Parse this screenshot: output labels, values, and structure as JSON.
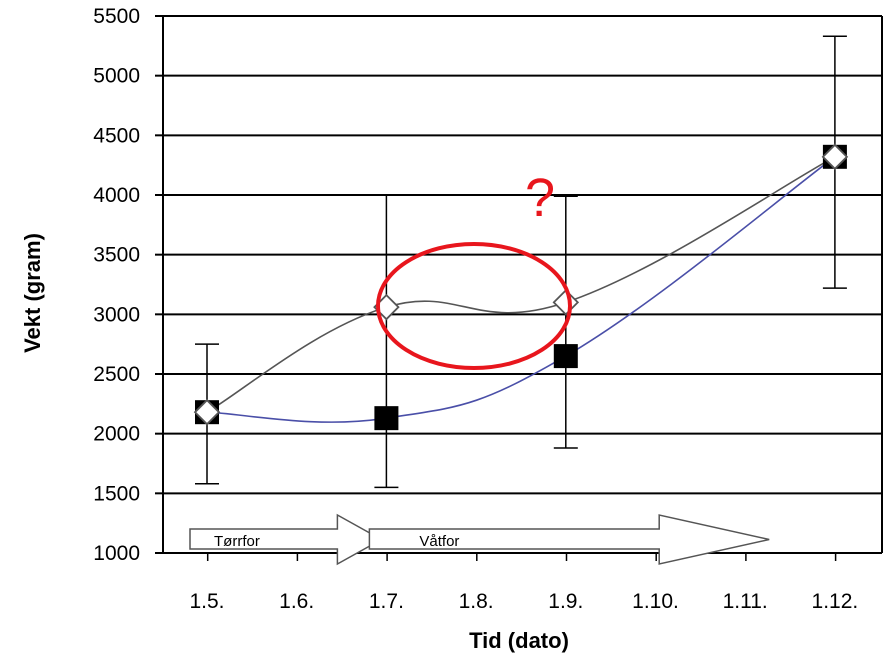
{
  "chart_data": {
    "type": "line",
    "title": "",
    "xlabel": "Tid (dato)",
    "ylabel": "Vekt (gram)",
    "categories": [
      "1.5.",
      "1.6.",
      "1.7.",
      "1.8.",
      "1.9.",
      "1.10.",
      "1.11.",
      "1.12."
    ],
    "ylim": [
      1000,
      5500
    ],
    "yticks": [
      1000,
      1500,
      2000,
      2500,
      3000,
      3500,
      4000,
      4500,
      5000,
      5500
    ],
    "grid": true,
    "series": [
      {
        "marker": "diamond-open",
        "color": "#555555",
        "points": [
          {
            "x": "1.5.",
            "y": 2180,
            "err_low": 1580,
            "err_high": 2750
          },
          {
            "x": "1.7.",
            "y": 3060,
            "err_low": 1550,
            "err_high": 4000
          },
          {
            "x": "1.9.",
            "y": 3100,
            "err_low": 1880,
            "err_high": 3990
          },
          {
            "x": "1.12.",
            "y": 4320,
            "err_low": 3220,
            "err_high": 5330
          }
        ]
      },
      {
        "marker": "square-filled",
        "color": "#4a4fa8",
        "points": [
          {
            "x": "1.5.",
            "y": 2180
          },
          {
            "x": "1.7.",
            "y": 2130
          },
          {
            "x": "1.9.",
            "y": 2650
          },
          {
            "x": "1.12.",
            "y": 4320
          }
        ]
      }
    ],
    "annotations": {
      "arrows": [
        {
          "label": "Tørrfor",
          "from": "1.5.",
          "to": "1.7."
        },
        {
          "label": "Våtfor",
          "from": "1.7.",
          "to": "1.11."
        }
      ],
      "highlight": {
        "shape": "ellipse",
        "color": "#e8161d",
        "around": "1.7.-1.9."
      },
      "question_mark": "?"
    }
  }
}
